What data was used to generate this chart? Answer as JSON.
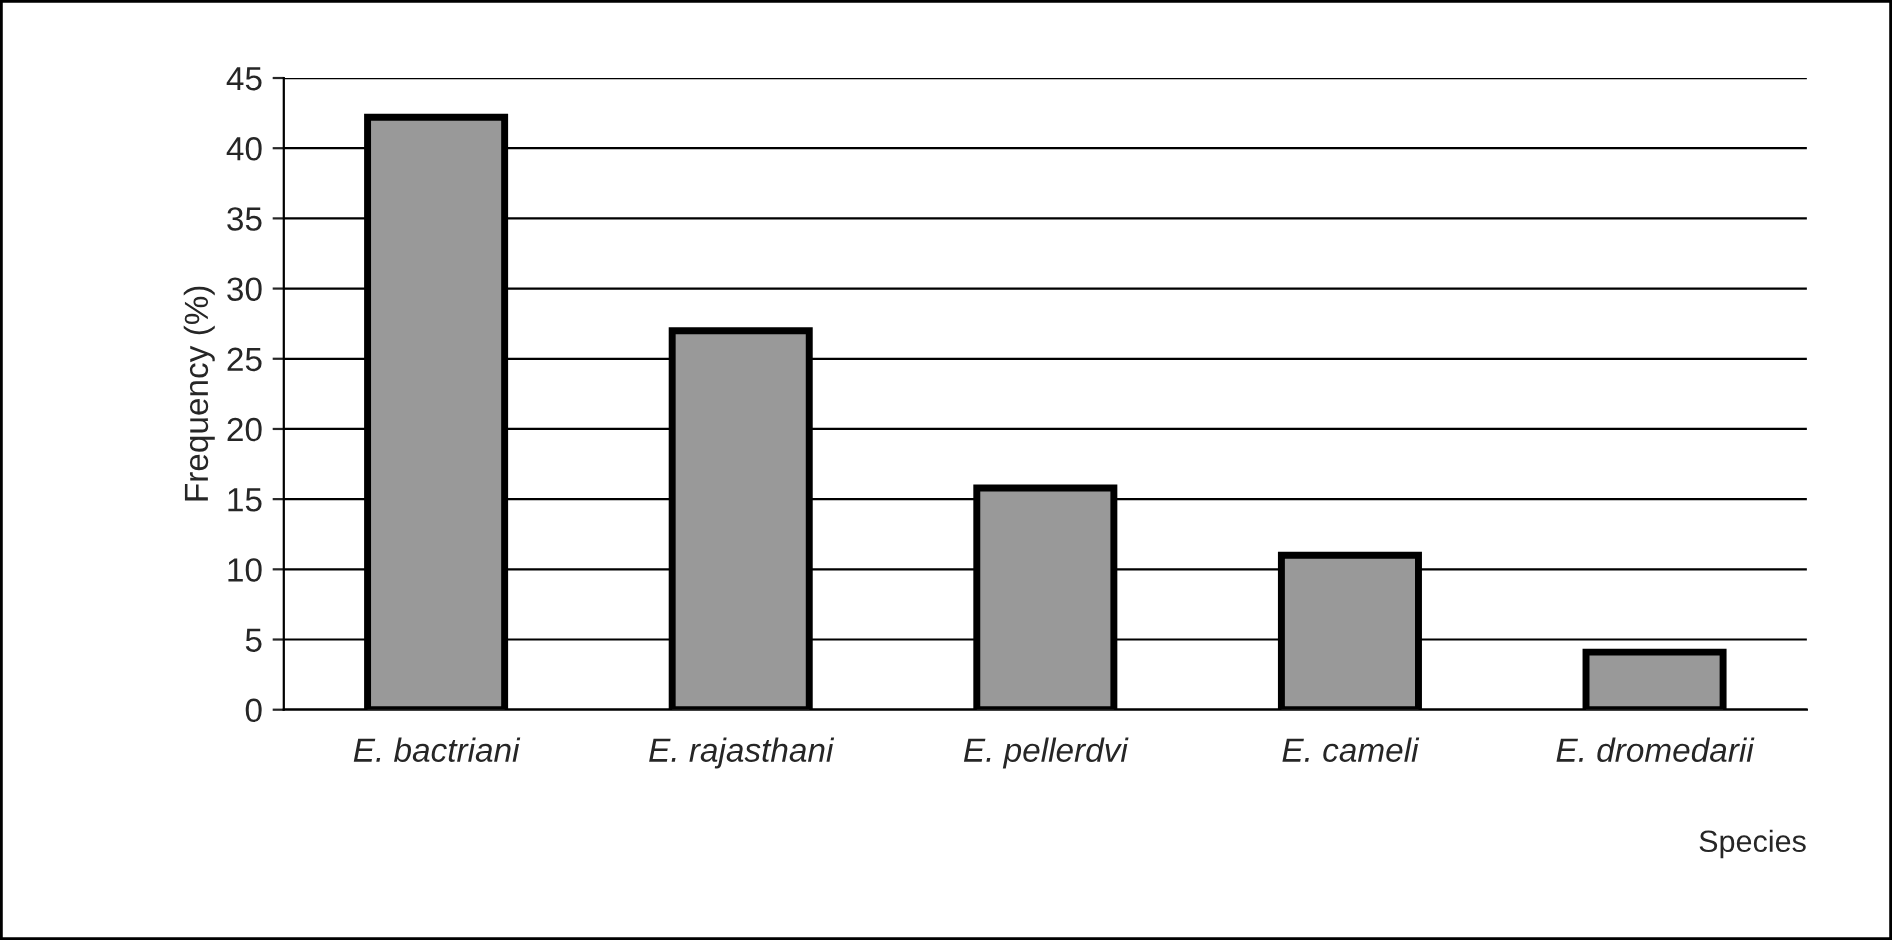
{
  "chart_data": {
    "type": "bar",
    "xlabel": "Species",
    "ylabel": "Frequency (%)",
    "categories": [
      "E. bactriani",
      "E. rajasthani",
      "E. pellerdvi",
      "E. cameli",
      "E. dromedarii"
    ],
    "values": [
      42.2,
      27,
      15.8,
      11,
      4.1
    ],
    "color": "#999999",
    "ylim": [
      0,
      45
    ],
    "yticks": [
      0,
      5,
      10,
      15,
      20,
      25,
      30,
      35,
      40,
      45
    ],
    "grid": "y",
    "legend": false
  }
}
